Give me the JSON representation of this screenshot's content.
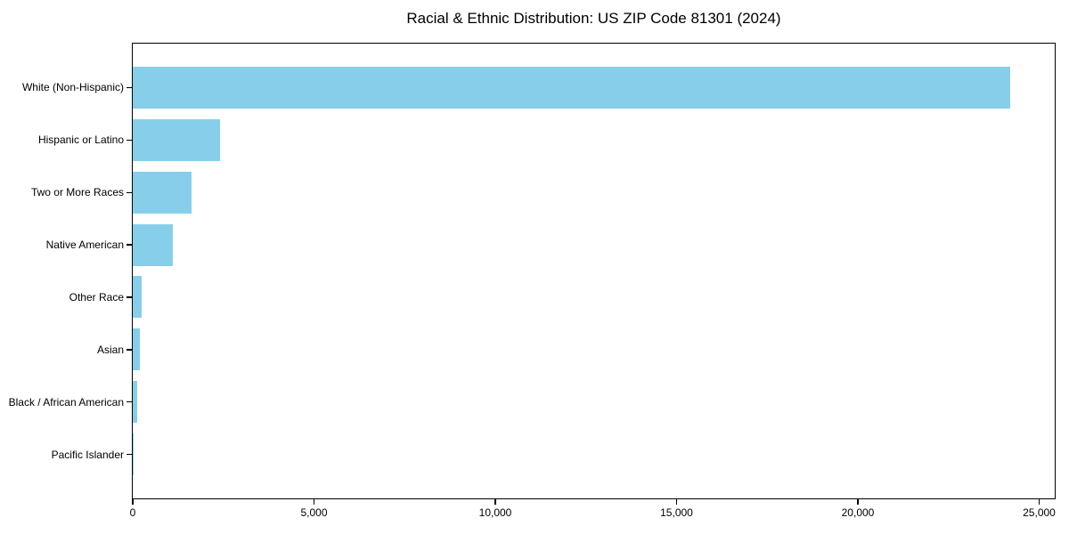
{
  "chart_data": {
    "type": "bar",
    "orientation": "horizontal",
    "title": "Racial & Ethnic Distribution: US ZIP Code 81301 (2024)",
    "categories": [
      "White (Non-Hispanic)",
      "Hispanic or Latino",
      "Two or More Races",
      "Native American",
      "Other Race",
      "Asian",
      "Black / African American",
      "Pacific Islander"
    ],
    "values": [
      24200,
      2400,
      1630,
      1100,
      240,
      200,
      120,
      15
    ],
    "xlabel": "",
    "ylabel": "",
    "xlim": [
      0,
      25430
    ],
    "x_ticks": [
      0,
      5000,
      10000,
      15000,
      20000,
      25000
    ],
    "x_tick_labels": [
      "0",
      "5,000",
      "10,000",
      "15,000",
      "20,000",
      "25,000"
    ],
    "bar_color": "#87CEEB",
    "axis_color": "#000000",
    "text_color": "#000000",
    "background_color": "#FFFFFF",
    "grid": false,
    "legend_position": "none",
    "value_labels_shown": false
  }
}
